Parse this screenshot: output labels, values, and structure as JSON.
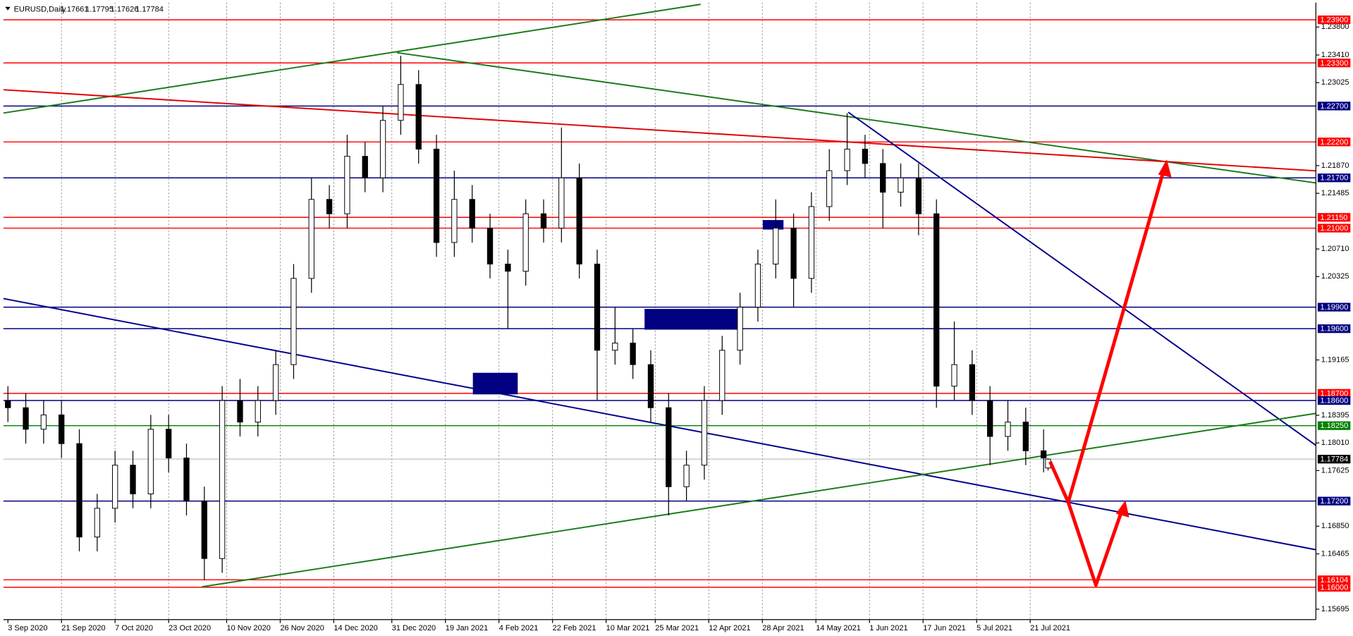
{
  "chart_data": {
    "type": "candlestick",
    "title": "EURUSD,Daily",
    "x": [
      0,
      4,
      8,
      12,
      16,
      20,
      24,
      28,
      32,
      36,
      40,
      44,
      48,
      52,
      56,
      60,
      64,
      68,
      72,
      76,
      80,
      84,
      88,
      92,
      96,
      100,
      104,
      108,
      112,
      116,
      120,
      124,
      128,
      132,
      136,
      140,
      144,
      148,
      152,
      156,
      160,
      164,
      168,
      172,
      176,
      180,
      184,
      188,
      192,
      196,
      200,
      204,
      208,
      212,
      216,
      220,
      224,
      228,
      232,
      233
    ],
    "open": [
      1.186,
      1.185,
      1.182,
      1.184,
      1.18,
      1.167,
      1.171,
      1.177,
      1.173,
      1.182,
      1.178,
      1.172,
      1.164,
      1.186,
      1.183,
      1.186,
      1.191,
      1.203,
      1.214,
      1.212,
      1.22,
      1.217,
      1.225,
      1.23,
      1.221,
      1.208,
      1.214,
      1.21,
      1.205,
      1.204,
      1.212,
      1.21,
      1.217,
      1.205,
      1.193,
      1.194,
      1.191,
      1.185,
      1.174,
      1.177,
      1.186,
      1.193,
      1.199,
      1.205,
      1.21,
      1.203,
      1.213,
      1.218,
      1.221,
      1.219,
      1.215,
      1.217,
      1.212,
      1.188,
      1.191,
      1.186,
      1.181,
      1.183,
      1.179,
      1.17661
    ],
    "high": [
      1.188,
      1.187,
      1.186,
      1.186,
      1.182,
      1.173,
      1.179,
      1.179,
      1.184,
      1.184,
      1.18,
      1.174,
      1.188,
      1.189,
      1.188,
      1.193,
      1.205,
      1.217,
      1.216,
      1.223,
      1.222,
      1.227,
      1.234,
      1.232,
      1.223,
      1.218,
      1.216,
      1.212,
      1.207,
      1.214,
      1.214,
      1.224,
      1.219,
      1.207,
      1.199,
      1.196,
      1.193,
      1.187,
      1.179,
      1.188,
      1.195,
      1.201,
      1.207,
      1.214,
      1.212,
      1.215,
      1.221,
      1.226,
      1.223,
      1.221,
      1.219,
      1.219,
      1.214,
      1.197,
      1.193,
      1.188,
      1.186,
      1.185,
      1.182,
      1.17795
    ],
    "low": [
      1.183,
      1.18,
      1.18,
      1.178,
      1.165,
      1.165,
      1.169,
      1.171,
      1.171,
      1.176,
      1.17,
      1.161,
      1.162,
      1.181,
      1.181,
      1.184,
      1.189,
      1.201,
      1.21,
      1.21,
      1.215,
      1.215,
      1.223,
      1.219,
      1.206,
      1.206,
      1.208,
      1.203,
      1.196,
      1.202,
      1.208,
      1.208,
      1.203,
      1.186,
      1.191,
      1.189,
      1.183,
      1.17,
      1.172,
      1.175,
      1.184,
      1.191,
      1.197,
      1.203,
      1.199,
      1.201,
      1.211,
      1.216,
      1.217,
      1.21,
      1.213,
      1.209,
      1.185,
      1.186,
      1.184,
      1.177,
      1.179,
      1.177,
      1.176,
      1.17626
    ],
    "close": [
      1.185,
      1.182,
      1.184,
      1.18,
      1.167,
      1.171,
      1.177,
      1.173,
      1.182,
      1.178,
      1.172,
      1.164,
      1.186,
      1.183,
      1.186,
      1.191,
      1.203,
      1.214,
      1.212,
      1.22,
      1.217,
      1.225,
      1.23,
      1.221,
      1.208,
      1.214,
      1.21,
      1.205,
      1.204,
      1.212,
      1.21,
      1.217,
      1.205,
      1.193,
      1.194,
      1.191,
      1.185,
      1.174,
      1.177,
      1.186,
      1.193,
      1.199,
      1.205,
      1.21,
      1.203,
      1.213,
      1.218,
      1.221,
      1.219,
      1.215,
      1.217,
      1.212,
      1.188,
      1.191,
      1.186,
      1.181,
      1.183,
      1.179,
      1.178,
      1.17784
    ],
    "current_price": {
      "value": 1.17784,
      "label": "1.17784"
    },
    "xlim": [
      -1,
      293
    ],
    "ylim": [
      1.1555,
      1.2414
    ],
    "xticks": [
      {
        "value": 0,
        "label": "3 Sep 2020"
      },
      {
        "value": 12,
        "label": "21 Sep 2020"
      },
      {
        "value": 24,
        "label": "7 Oct 2020"
      },
      {
        "value": 36,
        "label": "23 Oct 2020"
      },
      {
        "value": 49,
        "label": "10 Nov 2020"
      },
      {
        "value": 61,
        "label": "26 Nov 2020"
      },
      {
        "value": 73,
        "label": "14 Dec 2020"
      },
      {
        "value": 86,
        "label": "31 Dec 2020"
      },
      {
        "value": 98,
        "label": "19 Jan 2021"
      },
      {
        "value": 110,
        "label": "4 Feb 2021"
      },
      {
        "value": 122,
        "label": "22 Feb 2021"
      },
      {
        "value": 134,
        "label": "10 Mar 2021"
      },
      {
        "value": 145,
        "label": "25 Mar 2021"
      },
      {
        "value": 157,
        "label": "12 Apr 2021"
      },
      {
        "value": 169,
        "label": "28 Apr 2021"
      },
      {
        "value": 181,
        "label": "14 May 2021"
      },
      {
        "value": 193,
        "label": "1 Jun 2021"
      },
      {
        "value": 205,
        "label": "17 Jun 2021"
      },
      {
        "value": 217,
        "label": "5 Jul 2021"
      },
      {
        "value": 229,
        "label": "21 Jul 2021"
      }
    ],
    "yticks": [
      {
        "value": 1.238,
        "label": "1.23800"
      },
      {
        "value": 1.2341,
        "label": "1.23410"
      },
      {
        "value": 1.23025,
        "label": "1.23025"
      },
      {
        "value": 1.2187,
        "label": "1.21870"
      },
      {
        "value": 1.21485,
        "label": "1.21485"
      },
      {
        "value": 1.2071,
        "label": "1.20710"
      },
      {
        "value": 1.20325,
        "label": "1.20325"
      },
      {
        "value": 1.19165,
        "label": "1.19165"
      },
      {
        "value": 1.18395,
        "label": "1.18395"
      },
      {
        "value": 1.1801,
        "label": "1.18010"
      },
      {
        "value": 1.17625,
        "label": "1.17625"
      },
      {
        "value": 1.1685,
        "label": "1.16850"
      },
      {
        "value": 1.16465,
        "label": "1.16465"
      },
      {
        "value": 1.15695,
        "label": "1.15695"
      }
    ],
    "levels": [
      {
        "value": 1.239,
        "label": "1.23900",
        "color": "#ff0000"
      },
      {
        "value": 1.233,
        "label": "1.23300",
        "color": "#ff0000"
      },
      {
        "value": 1.227,
        "label": "1.22700",
        "color": "#000080"
      },
      {
        "value": 1.222,
        "label": "1.22200",
        "color": "#ff0000"
      },
      {
        "value": 1.217,
        "label": "1.21700",
        "color": "#000080"
      },
      {
        "value": 1.2115,
        "label": "1.21150",
        "color": "#ff0000"
      },
      {
        "value": 1.21,
        "label": "1.21000",
        "color": "#ff0000"
      },
      {
        "value": 1.199,
        "label": "1.19900",
        "color": "#000080"
      },
      {
        "value": 1.196,
        "label": "1.19600",
        "color": "#000080"
      },
      {
        "value": 1.187,
        "label": "1.18700",
        "color": "#ff0000"
      },
      {
        "value": 1.186,
        "label": "1.18600",
        "color": "#000080"
      },
      {
        "value": 1.1825,
        "label": "1.18250",
        "color": "#008000"
      },
      {
        "value": 1.172,
        "label": "1.17200",
        "color": "#000080"
      },
      {
        "value": 1.16104,
        "label": "1.16104",
        "color": "#ff0000"
      },
      {
        "value": 1.16,
        "label": "1.16000",
        "color": "#ff0000"
      }
    ],
    "grid": true
  }
}
